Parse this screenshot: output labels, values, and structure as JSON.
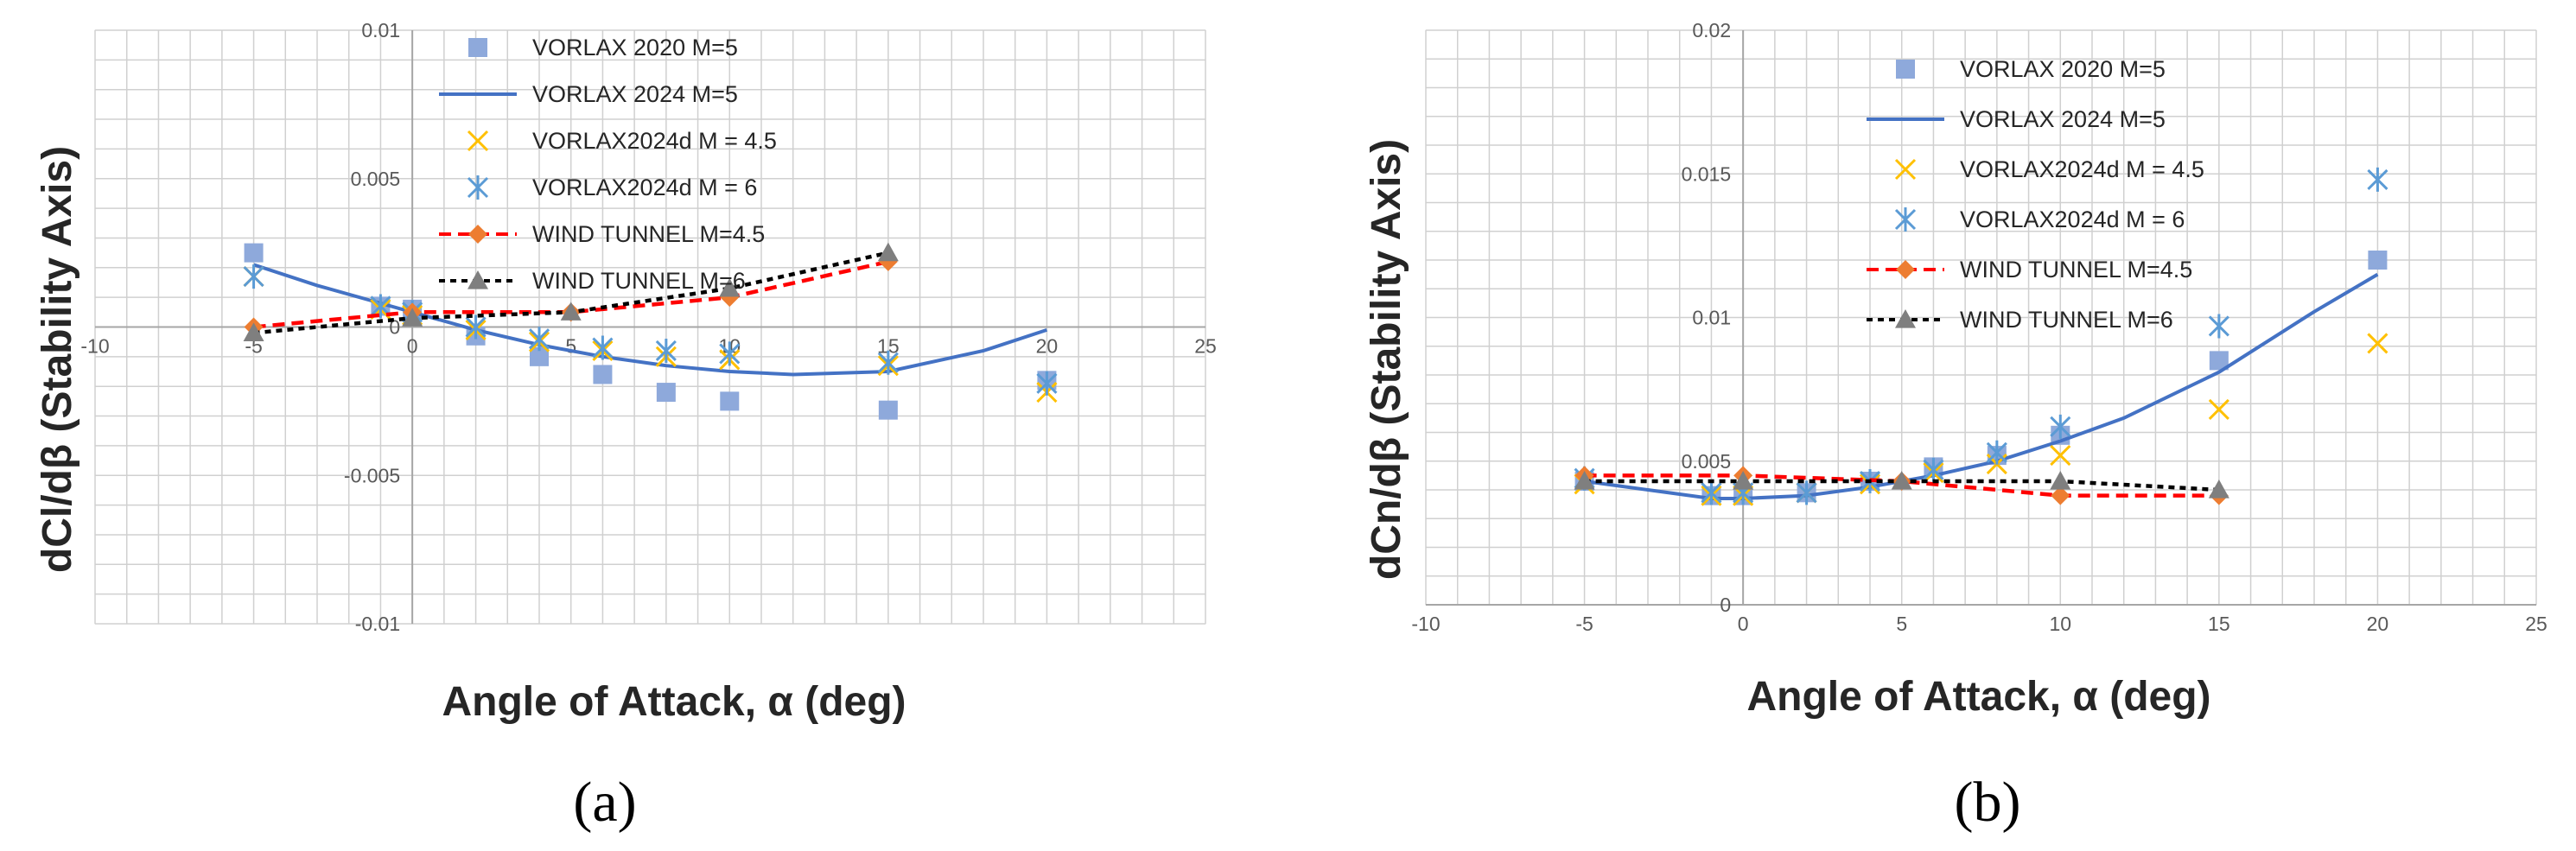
{
  "panel_labels": [
    "(a)",
    "(b)"
  ],
  "styles": {
    "series": [
      {
        "marker": "square",
        "line": "none",
        "color": "#8EA9DB"
      },
      {
        "marker": "none",
        "line": "solid",
        "color": "#4472C4"
      },
      {
        "marker": "x",
        "line": "none",
        "color": "#FFC000"
      },
      {
        "marker": "asterisk",
        "line": "none",
        "color": "#5B9BD5"
      },
      {
        "marker": "diamond",
        "line": "dashed",
        "color": "#FF0000",
        "marker_color": "#ED7D31"
      },
      {
        "marker": "triangle",
        "line": "dotted",
        "color": "#000000",
        "marker_color": "#7F7F7F"
      }
    ]
  },
  "chart_data": [
    {
      "type": "scatter",
      "panel": "(a)",
      "xlabel": "Angle of Attack, α (deg)",
      "ylabel": "dCl/dβ (Stability Axis)",
      "xlim": [
        -10,
        25
      ],
      "ylim": [
        -0.01,
        0.01
      ],
      "x_ticks": [
        "-10",
        "-5",
        "0",
        "5",
        "10",
        "15",
        "20",
        "25"
      ],
      "y_ticks": [
        "-0.01",
        "-0.005",
        "0",
        "0.005",
        "0.01"
      ],
      "grid": true,
      "legend_position": "top-center",
      "series": [
        {
          "name": "VORLAX 2020 M=5",
          "x": [
            -5,
            -1,
            0,
            2,
            4,
            6,
            8,
            10,
            15,
            20
          ],
          "y": [
            0.0025,
            0.0007,
            0.0006,
            -0.0003,
            -0.001,
            -0.0016,
            -0.0022,
            -0.0025,
            -0.0028,
            -0.0018
          ]
        },
        {
          "name": "VORLAX 2024 M=5",
          "x": [
            -5,
            -3,
            -1,
            0,
            2,
            4,
            6,
            8,
            10,
            12,
            15,
            18,
            20
          ],
          "y": [
            0.0021,
            0.0014,
            0.0008,
            0.0005,
            -0.0001,
            -0.0006,
            -0.001,
            -0.0013,
            -0.0015,
            -0.0016,
            -0.0015,
            -0.0008,
            -0.0001
          ]
        },
        {
          "name": "VORLAX2024d M = 4.5",
          "x": [
            -5,
            -1,
            0,
            2,
            4,
            6,
            8,
            10,
            15,
            20
          ],
          "y": [
            0.0017,
            0.0006,
            0.0004,
            -0.0001,
            -0.0005,
            -0.0008,
            -0.001,
            -0.0011,
            -0.0013,
            -0.0022
          ]
        },
        {
          "name": "VORLAX2024d M = 6",
          "x": [
            -5,
            -1,
            0,
            2,
            4,
            6,
            8,
            10,
            15,
            20
          ],
          "y": [
            0.0017,
            0.0007,
            0.0005,
            0.0,
            -0.0004,
            -0.0007,
            -0.0008,
            -0.0009,
            -0.0012,
            -0.0019
          ]
        },
        {
          "name": "WIND TUNNEL M=4.5",
          "x": [
            -5,
            0,
            5,
            10,
            15
          ],
          "y": [
            0.0,
            0.0005,
            0.0005,
            0.001,
            0.0022
          ]
        },
        {
          "name": "WIND TUNNEL M=6",
          "x": [
            -5,
            0,
            5,
            10,
            15
          ],
          "y": [
            -0.0002,
            0.0003,
            0.0005,
            0.0013,
            0.0025
          ]
        }
      ]
    },
    {
      "type": "scatter",
      "panel": "(b)",
      "xlabel": "Angle of Attack, α (deg)",
      "ylabel": "dCn/dβ (Stability Axis)",
      "xlim": [
        -10,
        25
      ],
      "ylim": [
        0,
        0.02
      ],
      "x_ticks": [
        "-10",
        "-5",
        "0",
        "5",
        "10",
        "15",
        "20",
        "25"
      ],
      "y_ticks": [
        "0",
        "0.005",
        "0.01",
        "0.015",
        "0.02"
      ],
      "grid": true,
      "legend_position": "top-center",
      "series": [
        {
          "name": "VORLAX 2020 M=5",
          "x": [
            -5,
            -1,
            0,
            2,
            4,
            6,
            8,
            10,
            15,
            20
          ],
          "y": [
            0.0043,
            0.0038,
            0.0038,
            0.0039,
            0.0043,
            0.0048,
            0.0052,
            0.0059,
            0.0085,
            0.012
          ]
        },
        {
          "name": "VORLAX 2024 M=5",
          "x": [
            -5,
            -3,
            -1,
            0,
            2,
            4,
            6,
            8,
            10,
            12,
            15,
            18,
            20
          ],
          "y": [
            0.0043,
            0.004,
            0.0037,
            0.0037,
            0.0038,
            0.0041,
            0.0045,
            0.005,
            0.0057,
            0.0065,
            0.0081,
            0.0102,
            0.0115
          ]
        },
        {
          "name": "VORLAX2024d M = 4.5",
          "x": [
            -5,
            -1,
            0,
            2,
            4,
            6,
            8,
            10,
            15,
            20
          ],
          "y": [
            0.0042,
            0.0038,
            0.0038,
            0.0039,
            0.0042,
            0.0046,
            0.0049,
            0.0052,
            0.0068,
            0.0091
          ]
        },
        {
          "name": "VORLAX2024d M = 6",
          "x": [
            -5,
            -1,
            0,
            2,
            4,
            6,
            8,
            10,
            15,
            20
          ],
          "y": [
            0.0044,
            0.0039,
            0.0039,
            0.0039,
            0.0043,
            0.0047,
            0.0053,
            0.0062,
            0.0097,
            0.0148
          ]
        },
        {
          "name": "WIND TUNNEL M=4.5",
          "x": [
            -5,
            0,
            5,
            10,
            15
          ],
          "y": [
            0.0045,
            0.0045,
            0.0043,
            0.0038,
            0.0038
          ]
        },
        {
          "name": "WIND TUNNEL M=6",
          "x": [
            -5,
            0,
            5,
            10,
            15
          ],
          "y": [
            0.0043,
            0.0043,
            0.0043,
            0.0043,
            0.004
          ]
        }
      ]
    }
  ]
}
